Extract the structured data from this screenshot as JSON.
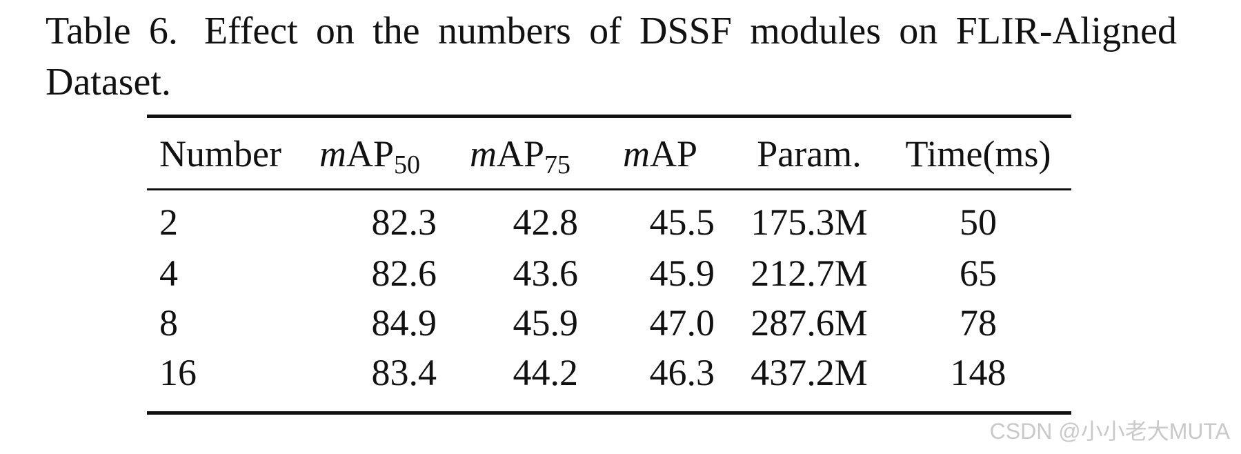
{
  "caption": {
    "label": "Table 6.",
    "text": "Effect on the numbers of DSSF modules on FLIR-Aligned Dataset."
  },
  "table": {
    "headers": {
      "number": "Number",
      "map50_math": "m",
      "map50_text": "AP",
      "map50_sub": "50",
      "map75_math": "m",
      "map75_text": "AP",
      "map75_sub": "75",
      "map_math": "m",
      "map_text": "AP",
      "param": "Param.",
      "time": "Time(ms)"
    },
    "rows": [
      {
        "number": "2",
        "map50": "82.3",
        "map75": "42.8",
        "map": "45.5",
        "param": "175.3M",
        "time": "50"
      },
      {
        "number": "4",
        "map50": "82.6",
        "map75": "43.6",
        "map": "45.9",
        "param": "212.7M",
        "time": "65"
      },
      {
        "number": "8",
        "map50": "84.9",
        "map75": "45.9",
        "map": "47.0",
        "param": "287.6M",
        "time": "78"
      },
      {
        "number": "16",
        "map50": "83.4",
        "map75": "44.2",
        "map": "46.3",
        "param": "437.2M",
        "time": "148"
      }
    ]
  },
  "watermark": "CSDN @小小老大MUTA"
}
